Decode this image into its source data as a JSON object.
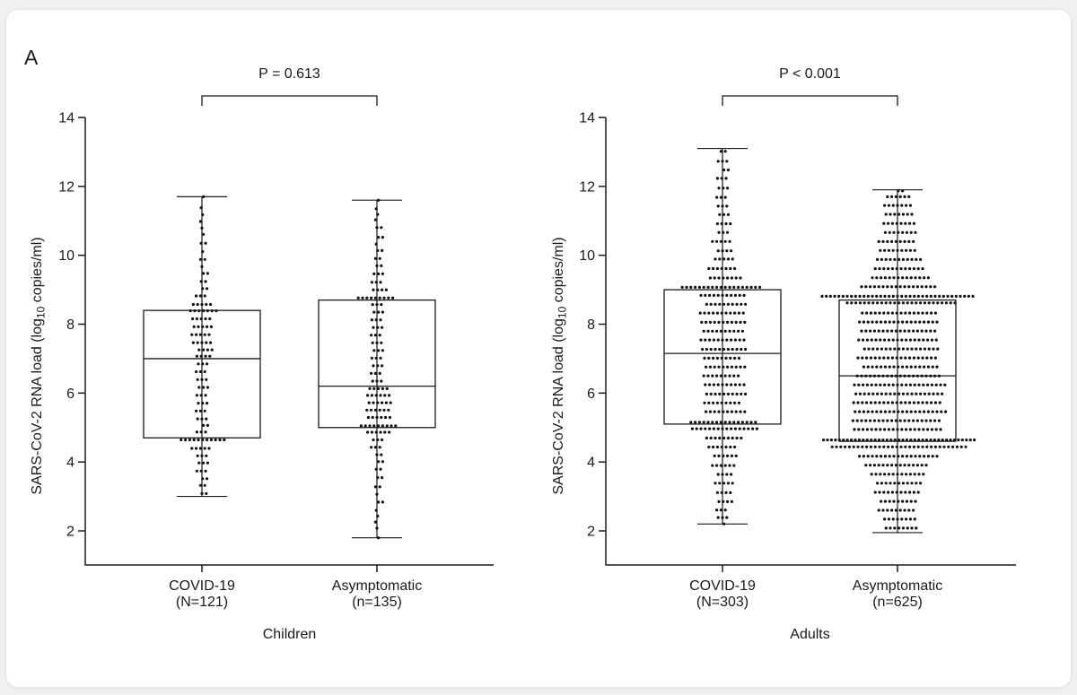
{
  "panel_label": "A",
  "chart_data": {
    "type": "box-scatter",
    "title": "",
    "ylabel": "SARS-CoV-2 RNA load (log10 copies/ml)",
    "ylabel_parts": {
      "pre": "SARS-CoV-2 RNA load (log",
      "sub": "10",
      "post": " copies/ml)"
    },
    "y_ticks": [
      2,
      4,
      6,
      8,
      10,
      12,
      14
    ],
    "ylim": [
      1,
      14
    ],
    "grid": false,
    "legend": "none",
    "panels": [
      {
        "group_label": "Children",
        "p_label": "P = 0.613",
        "series": [
          {
            "name": "COVID-19",
            "label_line1": "COVID-19",
            "label_line2": "(N=121)",
            "n": 121,
            "box": {
              "whisker_low": 3.0,
              "q1": 4.7,
              "median": 7.0,
              "q3": 8.4,
              "whisker_high": 11.7
            }
          },
          {
            "name": "Asymptomatic",
            "label_line1": "Asymptomatic",
            "label_line2": "(n=135)",
            "n": 135,
            "box": {
              "whisker_low": 1.8,
              "q1": 5.0,
              "median": 6.2,
              "q3": 8.7,
              "whisker_high": 11.6
            }
          }
        ]
      },
      {
        "group_label": "Adults",
        "p_label": "P < 0.001",
        "series": [
          {
            "name": "COVID-19",
            "label_line1": "COVID-19",
            "label_line2": "(N=303)",
            "n": 303,
            "box": {
              "whisker_low": 2.2,
              "q1": 5.1,
              "median": 7.15,
              "q3": 9.0,
              "whisker_high": 13.1
            }
          },
          {
            "name": "Asymptomatic",
            "label_line1": "Asymptomatic",
            "label_line2": "(n=625)",
            "n": 625,
            "box": {
              "whisker_low": 1.95,
              "q1": 4.6,
              "median": 6.5,
              "q3": 8.7,
              "whisker_high": 11.9
            }
          }
        ]
      }
    ],
    "colors": {
      "ink": "#1a1a1a",
      "dot": "#111111",
      "background": "#ffffff"
    }
  }
}
